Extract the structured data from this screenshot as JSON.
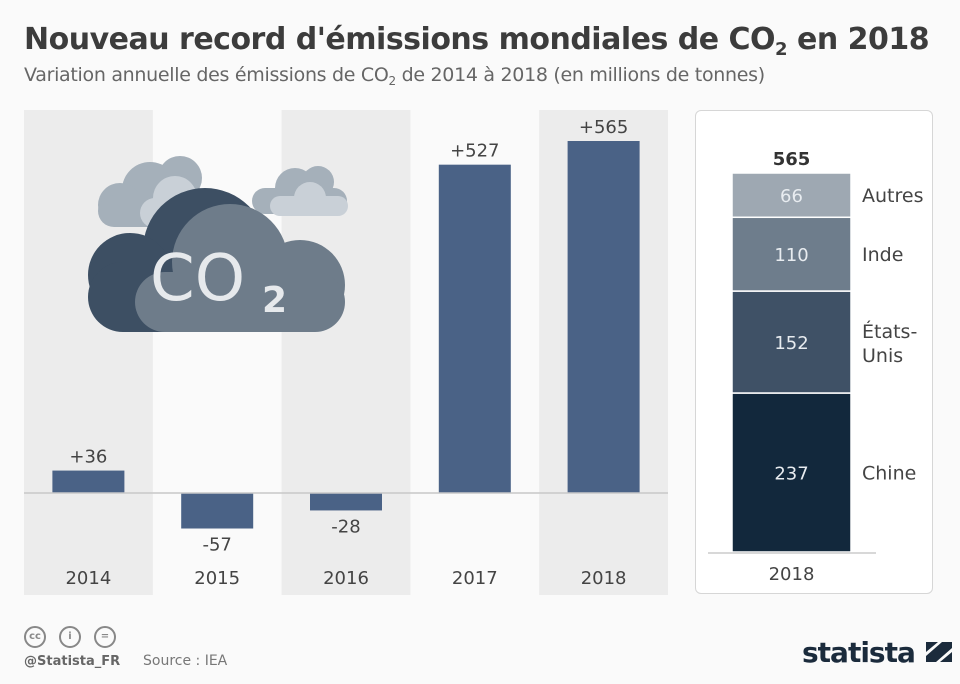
{
  "title": {
    "prefix": "Nouveau record d'émissions mondiales de CO",
    "sub": "2",
    "suffix": " en 2018"
  },
  "subtitle": {
    "prefix": "Variation annuelle des émissions de CO",
    "sub": "2",
    "suffix": " de 2014 à 2018 (en millions de tonnes)"
  },
  "icon_label": {
    "text": "CO",
    "sub": "2"
  },
  "chart_data": [
    {
      "type": "bar",
      "categories": [
        "2014",
        "2015",
        "2016",
        "2017",
        "2018"
      ],
      "values": [
        36,
        -57,
        -28,
        527,
        565
      ],
      "data_labels": [
        "+36",
        "-57",
        "-28",
        "+527",
        "+565"
      ],
      "bar_color": "#4a6286",
      "band_color": "#ececec",
      "grid": false
    },
    {
      "type": "bar",
      "stacked": true,
      "categories": [
        "2018"
      ],
      "total_label": "565",
      "series": [
        {
          "name": "Chine",
          "values": [
            237
          ],
          "color": "#12283c"
        },
        {
          "name": "États-Unis",
          "values": [
            152
          ],
          "color": "#3f5166"
        },
        {
          "name": "Inde",
          "values": [
            110
          ],
          "color": "#6e7d8c"
        },
        {
          "name": "Autres",
          "values": [
            66
          ],
          "color": "#9ea8b2"
        }
      ],
      "legend_placement": "right"
    }
  ],
  "footer": {
    "handle": "@Statista_FR",
    "source": "Source : IEA",
    "logo": "statista",
    "license_icons": [
      "cc-icon",
      "by-icon",
      "nd-icon"
    ]
  }
}
